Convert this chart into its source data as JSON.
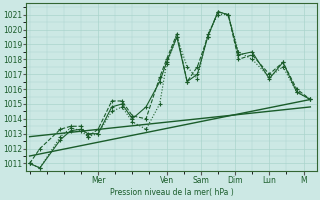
{
  "bg_color": "#cce8e4",
  "grid_color": "#aad4cc",
  "line_color": "#1a5c2a",
  "ylabel": "Pression niveau de la mer( hPa )",
  "ylim": [
    1010.5,
    1021.8
  ],
  "yticks": [
    1011,
    1012,
    1013,
    1014,
    1015,
    1016,
    1017,
    1018,
    1019,
    1020,
    1021
  ],
  "day_labels": [
    "Mer",
    "Ven",
    "Sam",
    "Dim",
    "Lun",
    "M"
  ],
  "day_positions": [
    2.0,
    4.0,
    5.0,
    6.0,
    7.0,
    8.0
  ],
  "xlim": [
    -0.1,
    8.4
  ],
  "series1_x": [
    0.0,
    0.3,
    0.9,
    1.2,
    1.5,
    1.7,
    2.0,
    2.4,
    2.7,
    3.0,
    3.4,
    3.8,
    4.0,
    4.3,
    4.6,
    4.9,
    5.2,
    5.5,
    5.8,
    6.1,
    6.5,
    7.0,
    7.4,
    7.8,
    8.2
  ],
  "series1_y": [
    1011.0,
    1010.7,
    1012.6,
    1013.2,
    1013.3,
    1013.0,
    1013.0,
    1014.8,
    1015.0,
    1014.0,
    1014.8,
    1016.5,
    1017.8,
    1019.5,
    1016.5,
    1017.0,
    1019.5,
    1021.2,
    1021.0,
    1018.3,
    1018.5,
    1016.7,
    1017.8,
    1015.8,
    1015.3
  ],
  "series2_x": [
    0.0,
    0.3,
    0.9,
    1.2,
    1.5,
    1.7,
    2.0,
    2.4,
    2.7,
    3.0,
    3.4,
    3.8,
    4.0,
    4.3,
    4.6,
    4.9,
    5.2,
    5.5,
    5.8,
    6.1,
    6.5,
    7.0,
    7.4,
    7.8,
    8.2
  ],
  "series2_y": [
    1011.0,
    1012.0,
    1013.3,
    1013.5,
    1013.5,
    1012.8,
    1013.3,
    1015.2,
    1015.2,
    1014.2,
    1014.0,
    1016.8,
    1018.0,
    1019.7,
    1016.5,
    1017.5,
    1019.5,
    1021.2,
    1021.0,
    1018.0,
    1018.3,
    1017.0,
    1017.8,
    1016.0,
    1015.3
  ],
  "series3_x": [
    0.0,
    0.3,
    0.9,
    1.2,
    1.5,
    1.7,
    2.0,
    2.4,
    2.7,
    3.0,
    3.4,
    3.8,
    4.0,
    4.3,
    4.6,
    4.9,
    5.2,
    5.5,
    5.8,
    6.1,
    6.5,
    7.0,
    7.4,
    7.8,
    8.2
  ],
  "series3_y": [
    1011.0,
    1010.7,
    1012.8,
    1013.4,
    1013.2,
    1012.8,
    1013.0,
    1014.5,
    1014.8,
    1013.8,
    1013.3,
    1015.0,
    1017.7,
    1019.5,
    1017.5,
    1016.7,
    1019.7,
    1021.0,
    1021.0,
    1018.5,
    1018.0,
    1016.8,
    1017.5,
    1015.8,
    1015.3
  ],
  "trend1_x": [
    0.0,
    8.2
  ],
  "trend1_y": [
    1011.5,
    1015.3
  ],
  "trend2_x": [
    0.0,
    8.2
  ],
  "trend2_y": [
    1012.8,
    1014.8
  ]
}
